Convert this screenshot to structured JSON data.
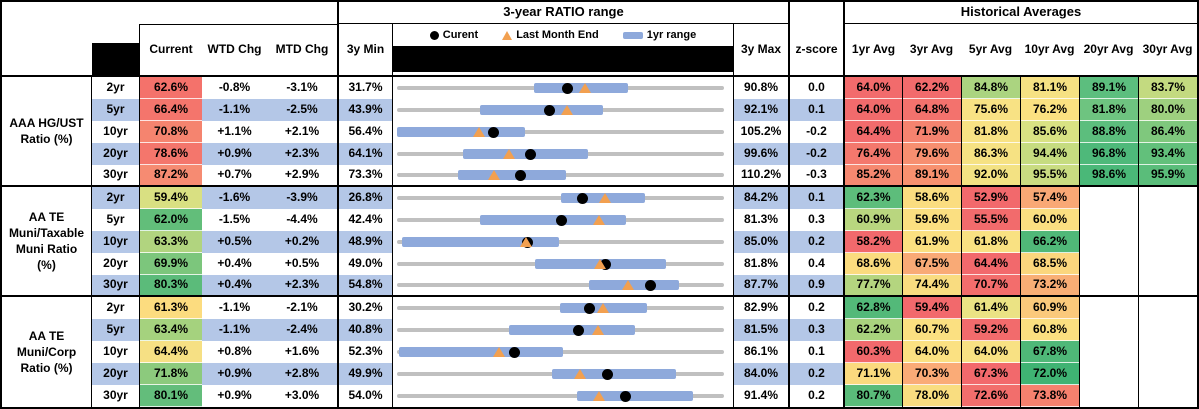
{
  "header": {
    "range_group_title": "3-year RATIO range",
    "averages_group_title": "Historical Averages",
    "columns": {
      "current": "Current",
      "wtd": "WTD Chg",
      "mtd": "MTD Chg",
      "min3y": "3y Min",
      "max3y": "3y Max",
      "zscore": "z-score"
    },
    "avg_columns": [
      "1yr Avg",
      "3yr Avg",
      "5yr Avg",
      "10yr Avg",
      "20yr Avg",
      "30yr Avg"
    ],
    "legend": [
      {
        "marker": "black-dot",
        "label": "Curent"
      },
      {
        "marker": "orange-triangle",
        "label": "Last Month End"
      },
      {
        "marker": "blue-bar",
        "label": "1yr range"
      }
    ]
  },
  "colors": {
    "stripe_blue": "#B4C7E7",
    "bar_blue": "#8EA9DB",
    "line_gray": "#C0C0C0",
    "triangle_orange": "#F2A050",
    "marker_black": "#000000"
  },
  "chart_data": {
    "type": "table",
    "sections": [
      {
        "label_lines": [
          "AAA HG/UST",
          "Ratio (%)"
        ],
        "rows": [
          {
            "tenor": "2yr",
            "current": 62.6,
            "current_bg": "#f4726b",
            "wtd_chg": -0.8,
            "mtd_chg": -3.1,
            "min_3y": 31.7,
            "max_3y": 90.8,
            "z_score": 0.0,
            "last_month_end": 65.7,
            "range_1yr": [
              56.5,
              73.5
            ],
            "avgs": [
              64.0,
              62.2,
              84.8,
              81.1,
              89.1,
              83.7
            ],
            "avg_bgs": [
              "#f26b6c",
              "#f26b6c",
              "#abd480",
              "#f6e183",
              "#5cbe7e",
              "#c3da80"
            ]
          },
          {
            "tenor": "5yr",
            "current": 66.4,
            "current_bg": "#f4756c",
            "wtd_chg": -1.1,
            "mtd_chg": -2.5,
            "min_3y": 43.9,
            "max_3y": 92.1,
            "z_score": 0.1,
            "last_month_end": 68.9,
            "range_1yr": [
              56.2,
              74.3
            ],
            "avgs": [
              64.0,
              64.8,
              75.6,
              76.2,
              81.8,
              80.0
            ],
            "avg_bgs": [
              "#f26b6c",
              "#f3726d",
              "#f8e284",
              "#fbe181",
              "#6ec480",
              "#9ed07f"
            ]
          },
          {
            "tenor": "10yr",
            "current": 70.8,
            "current_bg": "#f5846f",
            "wtd_chg": 1.1,
            "mtd_chg": 2.1,
            "min_3y": 56.4,
            "max_3y": 105.2,
            "z_score": -0.2,
            "last_month_end": 68.7,
            "range_1yr": [
              56.4,
              75.5
            ],
            "avgs": [
              64.4,
              71.9,
              81.8,
              85.6,
              88.8,
              86.4
            ],
            "avg_bgs": [
              "#f26b6c",
              "#f5836f",
              "#f8e284",
              "#d9e283",
              "#5cbe7d",
              "#7fc87d"
            ]
          },
          {
            "tenor": "20yr",
            "current": 78.6,
            "current_bg": "#f4766c",
            "wtd_chg": 0.9,
            "mtd_chg": 2.3,
            "min_3y": 64.1,
            "max_3y": 99.6,
            "z_score": -0.2,
            "last_month_end": 76.3,
            "range_1yr": [
              71.3,
              84.8
            ],
            "avgs": [
              76.4,
              79.6,
              86.3,
              94.4,
              96.8,
              93.4
            ],
            "avg_bgs": [
              "#f4786d",
              "#f78f70",
              "#f6e283",
              "#c6dc80",
              "#4eb97a",
              "#62c07b"
            ]
          },
          {
            "tenor": "30yr",
            "current": 87.2,
            "current_bg": "#f68b72",
            "wtd_chg": 0.7,
            "mtd_chg": 2.9,
            "min_3y": 73.3,
            "max_3y": 110.2,
            "z_score": -0.3,
            "last_month_end": 84.3,
            "range_1yr": [
              80.2,
              92.4
            ],
            "avgs": [
              85.2,
              89.1,
              92.0,
              95.5,
              98.6,
              95.9
            ],
            "avg_bgs": [
              "#f68870",
              "#f8916f",
              "#f3e283",
              "#c9dc81",
              "#4ab878",
              "#5abd7a"
            ]
          }
        ]
      },
      {
        "label_lines": [
          "AA TE",
          "Muni/Taxable",
          "Muni Ratio",
          "(%)"
        ],
        "rows": [
          {
            "tenor": "2yr",
            "current": 59.4,
            "current_bg": "#d9e082",
            "wtd_chg": -1.6,
            "mtd_chg": -3.9,
            "min_3y": 26.8,
            "max_3y": 84.2,
            "z_score": 0.1,
            "last_month_end": 63.3,
            "range_1yr": [
              55.5,
              70.4
            ],
            "avgs": [
              62.3,
              58.6,
              52.9,
              57.4,
              null,
              null
            ],
            "avg_bgs": [
              "#5dbd7b",
              "#fbdd80",
              "#f2696c",
              "#f9a875",
              "",
              ""
            ]
          },
          {
            "tenor": "5yr",
            "current": 62.0,
            "current_bg": "#62be7a",
            "wtd_chg": -1.5,
            "mtd_chg": -4.4,
            "min_3y": 42.4,
            "max_3y": 81.3,
            "z_score": 0.3,
            "last_month_end": 66.4,
            "range_1yr": [
              52.3,
              69.6
            ],
            "avgs": [
              60.9,
              59.6,
              55.5,
              60.0,
              null,
              null
            ],
            "avg_bgs": [
              "#b9d67f",
              "#fbdf81",
              "#f26b6c",
              "#fbdf81",
              "",
              ""
            ]
          },
          {
            "tenor": "10yr",
            "current": 63.3,
            "current_bg": "#b1d47f",
            "wtd_chg": 0.5,
            "mtd_chg": 0.2,
            "min_3y": 48.9,
            "max_3y": 85.0,
            "z_score": 0.2,
            "last_month_end": 63.1,
            "range_1yr": [
              49.5,
              66.8
            ],
            "avgs": [
              58.2,
              61.9,
              61.8,
              66.2,
              null,
              null
            ],
            "avg_bgs": [
              "#f2696c",
              "#fbe081",
              "#f9e182",
              "#50b878",
              "",
              ""
            ]
          },
          {
            "tenor": "20yr",
            "current": 69.9,
            "current_bg": "#7cc67c",
            "wtd_chg": 0.4,
            "mtd_chg": 0.5,
            "min_3y": 49.0,
            "max_3y": 81.8,
            "z_score": 0.4,
            "last_month_end": 69.4,
            "range_1yr": [
              62.8,
              76.0
            ],
            "avgs": [
              68.6,
              67.5,
              64.4,
              68.5,
              null,
              null
            ],
            "avg_bgs": [
              "#fbdb7e",
              "#f9aa76",
              "#f2696c",
              "#fbd67d",
              "",
              ""
            ]
          },
          {
            "tenor": "30yr",
            "current": 80.3,
            "current_bg": "#5bbb7a",
            "wtd_chg": 0.4,
            "mtd_chg": 2.3,
            "min_3y": 54.8,
            "max_3y": 87.7,
            "z_score": 0.9,
            "last_month_end": 78.0,
            "range_1yr": [
              74.1,
              83.2
            ],
            "avgs": [
              77.7,
              74.4,
              70.7,
              73.2,
              null,
              null
            ],
            "avg_bgs": [
              "#b4d57f",
              "#f9dc80",
              "#f36d6c",
              "#f9ae75",
              "",
              ""
            ]
          }
        ]
      },
      {
        "label_lines": [
          "AA TE",
          "Muni/Corp",
          "Ratio (%)"
        ],
        "rows": [
          {
            "tenor": "2yr",
            "current": 61.3,
            "current_bg": "#fcdc7f",
            "wtd_chg": -1.1,
            "mtd_chg": -2.1,
            "min_3y": 30.2,
            "max_3y": 82.9,
            "z_score": 0.2,
            "last_month_end": 63.4,
            "range_1yr": [
              56.4,
              70.5
            ],
            "avgs": [
              62.8,
              59.4,
              61.4,
              60.9,
              null,
              null
            ],
            "avg_bgs": [
              "#53b979",
              "#f2696c",
              "#ebe384",
              "#fbc97b",
              "",
              ""
            ]
          },
          {
            "tenor": "5yr",
            "current": 63.4,
            "current_bg": "#a5d27e",
            "wtd_chg": -1.1,
            "mtd_chg": -2.4,
            "min_3y": 40.8,
            "max_3y": 81.5,
            "z_score": 0.3,
            "last_month_end": 65.8,
            "range_1yr": [
              54.7,
              70.4
            ],
            "avgs": [
              62.2,
              60.7,
              59.2,
              60.8,
              null,
              null
            ],
            "avg_bgs": [
              "#a9d37e",
              "#fbe081",
              "#f26b6c",
              "#fbdf80",
              "",
              ""
            ]
          },
          {
            "tenor": "10yr",
            "current": 64.4,
            "current_bg": "#f6e084",
            "wtd_chg": 0.8,
            "mtd_chg": 1.6,
            "min_3y": 52.3,
            "max_3y": 86.1,
            "z_score": 0.1,
            "last_month_end": 62.8,
            "range_1yr": [
              52.5,
              69.5
            ],
            "avgs": [
              60.3,
              64.0,
              64.0,
              67.8,
              null,
              null
            ],
            "avg_bgs": [
              "#f2696c",
              "#fbe182",
              "#f8e183",
              "#4fb878",
              "",
              ""
            ]
          },
          {
            "tenor": "20yr",
            "current": 71.8,
            "current_bg": "#8cca7d",
            "wtd_chg": 0.9,
            "mtd_chg": 2.8,
            "min_3y": 49.9,
            "max_3y": 84.0,
            "z_score": 0.2,
            "last_month_end": 69.0,
            "range_1yr": [
              66.1,
              79.0
            ],
            "avgs": [
              71.1,
              70.3,
              67.3,
              72.0,
              null,
              null
            ],
            "avg_bgs": [
              "#fbda7e",
              "#faab77",
              "#f2696c",
              "#3fb373",
              "",
              ""
            ]
          },
          {
            "tenor": "30yr",
            "current": 80.1,
            "current_bg": "#63bd7b",
            "wtd_chg": 0.9,
            "mtd_chg": 3.0,
            "min_3y": 54.0,
            "max_3y": 91.4,
            "z_score": 0.2,
            "last_month_end": 77.1,
            "range_1yr": [
              74.6,
              87.8
            ],
            "avgs": [
              80.7,
              78.0,
              72.6,
              73.8,
              null,
              null
            ],
            "avg_bgs": [
              "#5abb79",
              "#f9dd80",
              "#f26e6c",
              "#f5816e",
              "",
              ""
            ]
          }
        ]
      }
    ]
  }
}
